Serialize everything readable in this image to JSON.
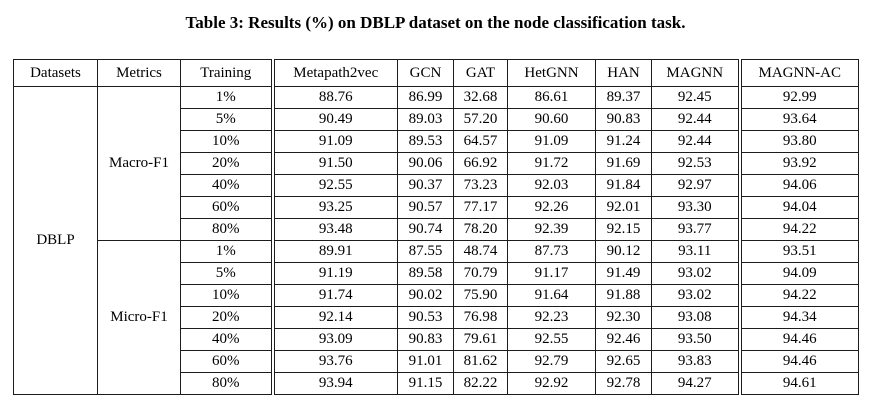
{
  "caption": "Table 3: Results (%) on DBLP dataset on the node classification task.",
  "table": {
    "headers": [
      "Datasets",
      "Metrics",
      "Training",
      "Metapath2vec",
      "GCN",
      "GAT",
      "HetGNN",
      "HAN",
      "MAGNN",
      "MAGNN-AC"
    ],
    "dataset": "DBLP",
    "bold_column": "MAGNN-AC",
    "sections": [
      {
        "metric": "Macro-F1",
        "rows": [
          {
            "training": "1%",
            "values": [
              "88.76",
              "86.99",
              "32.68",
              "86.61",
              "89.37",
              "92.45",
              "92.99"
            ]
          },
          {
            "training": "5%",
            "values": [
              "90.49",
              "89.03",
              "57.20",
              "90.60",
              "90.83",
              "92.44",
              "93.64"
            ]
          },
          {
            "training": "10%",
            "values": [
              "91.09",
              "89.53",
              "64.57",
              "91.09",
              "91.24",
              "92.44",
              "93.80"
            ]
          },
          {
            "training": "20%",
            "values": [
              "91.50",
              "90.06",
              "66.92",
              "91.72",
              "91.69",
              "92.53",
              "93.92"
            ]
          },
          {
            "training": "40%",
            "values": [
              "92.55",
              "90.37",
              "73.23",
              "92.03",
              "91.84",
              "92.97",
              "94.06"
            ]
          },
          {
            "training": "60%",
            "values": [
              "93.25",
              "90.57",
              "77.17",
              "92.26",
              "92.01",
              "93.30",
              "94.04"
            ]
          },
          {
            "training": "80%",
            "values": [
              "93.48",
              "90.74",
              "78.20",
              "92.39",
              "92.15",
              "93.77",
              "94.22"
            ]
          }
        ]
      },
      {
        "metric": "Micro-F1",
        "rows": [
          {
            "training": "1%",
            "values": [
              "89.91",
              "87.55",
              "48.74",
              "87.73",
              "90.12",
              "93.11",
              "93.51"
            ]
          },
          {
            "training": "5%",
            "values": [
              "91.19",
              "89.58",
              "70.79",
              "91.17",
              "91.49",
              "93.02",
              "94.09"
            ]
          },
          {
            "training": "10%",
            "values": [
              "91.74",
              "90.02",
              "75.90",
              "91.64",
              "91.88",
              "93.02",
              "94.22"
            ]
          },
          {
            "training": "20%",
            "values": [
              "92.14",
              "90.53",
              "76.98",
              "92.23",
              "92.30",
              "93.08",
              "94.34"
            ]
          },
          {
            "training": "40%",
            "values": [
              "93.09",
              "90.83",
              "79.61",
              "92.55",
              "92.46",
              "93.50",
              "94.46"
            ]
          },
          {
            "training": "60%",
            "values": [
              "93.76",
              "91.01",
              "81.62",
              "92.79",
              "92.65",
              "93.83",
              "94.46"
            ]
          },
          {
            "training": "80%",
            "values": [
              "93.94",
              "91.15",
              "82.22",
              "92.92",
              "92.78",
              "94.27",
              "94.61"
            ]
          }
        ]
      }
    ]
  },
  "colors": {
    "text": "#000000",
    "border": "#1c1c1c",
    "background": "#ffffff"
  }
}
